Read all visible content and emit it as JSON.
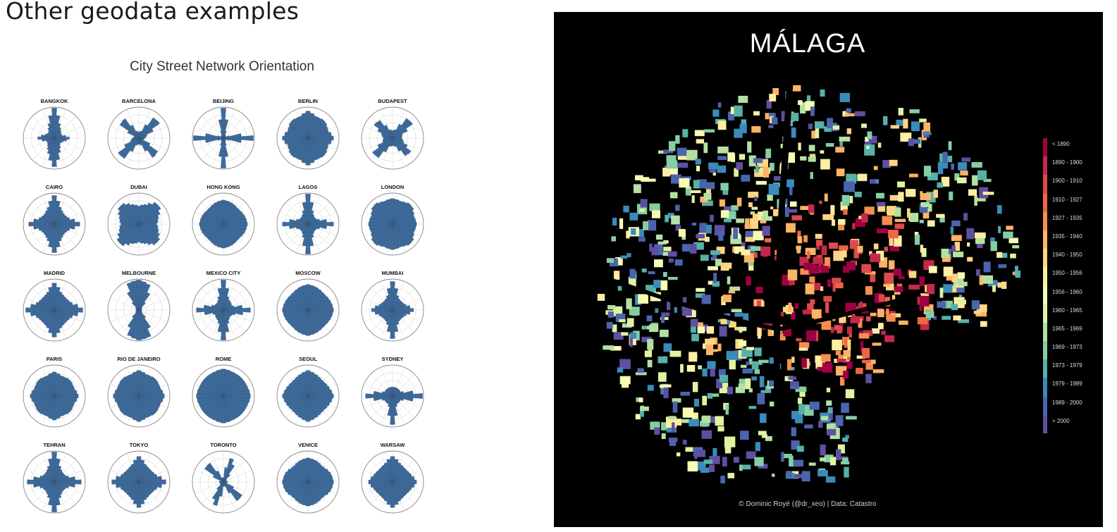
{
  "slide": {
    "title": "Other geodata examples"
  },
  "polar": {
    "title": "City Street Network Orientation",
    "bar_color": "#3d6a99",
    "cities": [
      {
        "name": "BANGKOK",
        "pattern": [
          1.0,
          0.45,
          0.3,
          0.25,
          0.5,
          0.3,
          0.25,
          0.45,
          0.95,
          0.5,
          0.3,
          0.25,
          0.55,
          0.3,
          0.25,
          0.45
        ]
      },
      {
        "name": "BARCELONA",
        "pattern": [
          0.2,
          0.25,
          1.0,
          0.3,
          0.2,
          0.15,
          0.95,
          0.25,
          0.2,
          0.25,
          1.0,
          0.3,
          0.2,
          0.15,
          0.95,
          0.25
        ]
      },
      {
        "name": "BEIJING",
        "pattern": [
          1.0,
          0.15,
          0.1,
          0.1,
          1.0,
          0.1,
          0.1,
          0.15,
          1.0,
          0.15,
          0.1,
          0.1,
          1.0,
          0.1,
          0.1,
          0.15
        ]
      },
      {
        "name": "BERLIN",
        "pattern": [
          0.9,
          0.75,
          0.8,
          0.7,
          0.85,
          0.7,
          0.8,
          0.75,
          0.9,
          0.75,
          0.8,
          0.7,
          0.85,
          0.7,
          0.8,
          0.75
        ]
      },
      {
        "name": "BUDAPEST",
        "pattern": [
          0.25,
          0.3,
          0.95,
          0.35,
          0.3,
          0.4,
          0.85,
          0.3,
          0.25,
          0.3,
          0.95,
          0.35,
          0.3,
          0.4,
          0.85,
          0.3
        ]
      },
      {
        "name": "CAIRO",
        "pattern": [
          0.95,
          0.55,
          0.45,
          0.5,
          0.85,
          0.5,
          0.45,
          0.55,
          0.95,
          0.55,
          0.45,
          0.5,
          0.85,
          0.5,
          0.45,
          0.55
        ]
      },
      {
        "name": "DUBAI",
        "pattern": [
          0.6,
          0.7,
          0.95,
          0.7,
          0.6,
          0.7,
          0.9,
          0.7,
          0.6,
          0.7,
          0.95,
          0.7,
          0.6,
          0.7,
          0.9,
          0.7
        ]
      },
      {
        "name": "HONG KONG",
        "pattern": [
          0.8,
          0.75,
          0.7,
          0.75,
          0.8,
          0.75,
          0.7,
          0.75,
          0.8,
          0.75,
          0.7,
          0.75,
          0.8,
          0.75,
          0.7,
          0.75
        ]
      },
      {
        "name": "LAGOS",
        "pattern": [
          1.0,
          0.4,
          0.3,
          0.35,
          0.85,
          0.35,
          0.3,
          0.4,
          1.0,
          0.4,
          0.3,
          0.35,
          0.85,
          0.35,
          0.3,
          0.4
        ]
      },
      {
        "name": "LONDON",
        "pattern": [
          0.85,
          0.8,
          0.9,
          0.75,
          0.8,
          0.75,
          0.9,
          0.8,
          0.85,
          0.8,
          0.9,
          0.75,
          0.8,
          0.75,
          0.9,
          0.8
        ]
      },
      {
        "name": "MADRID",
        "pattern": [
          0.9,
          0.6,
          0.55,
          0.6,
          0.95,
          0.6,
          0.55,
          0.6,
          0.9,
          0.6,
          0.55,
          0.6,
          0.95,
          0.6,
          0.55,
          0.6
        ]
      },
      {
        "name": "MELBOURNE",
        "pattern": [
          1.0,
          0.9,
          0.15,
          0.1,
          0.1,
          0.1,
          0.15,
          0.95,
          1.0,
          0.9,
          0.15,
          0.1,
          0.1,
          0.1,
          0.15,
          0.95
        ]
      },
      {
        "name": "MEXICO CITY",
        "pattern": [
          1.0,
          0.4,
          0.35,
          0.3,
          0.9,
          0.35,
          0.3,
          0.4,
          1.0,
          0.4,
          0.35,
          0.3,
          0.9,
          0.35,
          0.3,
          0.4
        ]
      },
      {
        "name": "MOSCOW",
        "pattern": [
          0.85,
          0.8,
          0.75,
          0.8,
          0.85,
          0.8,
          0.75,
          0.8,
          0.85,
          0.8,
          0.75,
          0.8,
          0.85,
          0.8,
          0.75,
          0.8
        ]
      },
      {
        "name": "MUMBAI",
        "pattern": [
          0.95,
          0.45,
          0.4,
          0.45,
          0.7,
          0.45,
          0.4,
          0.45,
          0.95,
          0.45,
          0.4,
          0.45,
          0.7,
          0.45,
          0.4,
          0.45
        ]
      },
      {
        "name": "PARIS",
        "pattern": [
          0.8,
          0.7,
          0.75,
          0.7,
          0.8,
          0.7,
          0.75,
          0.7,
          0.8,
          0.7,
          0.75,
          0.7,
          0.8,
          0.7,
          0.75,
          0.7
        ]
      },
      {
        "name": "RIO DE JANEIRO",
        "pattern": [
          0.85,
          0.75,
          0.8,
          0.75,
          0.85,
          0.75,
          0.8,
          0.75,
          0.85,
          0.75,
          0.8,
          0.75,
          0.85,
          0.75,
          0.8,
          0.75
        ]
      },
      {
        "name": "ROME",
        "pattern": [
          0.9,
          0.85,
          0.85,
          0.85,
          0.9,
          0.85,
          0.85,
          0.85,
          0.9,
          0.85,
          0.85,
          0.85,
          0.9,
          0.85,
          0.85,
          0.85
        ]
      },
      {
        "name": "SEOUL",
        "pattern": [
          0.85,
          0.75,
          0.7,
          0.75,
          0.85,
          0.75,
          0.7,
          0.75,
          0.85,
          0.75,
          0.7,
          0.75,
          0.85,
          0.75,
          0.7,
          0.75
        ]
      },
      {
        "name": "SYDNEY",
        "pattern": [
          0.3,
          0.3,
          0.3,
          0.3,
          1.0,
          0.3,
          0.3,
          0.3,
          0.95,
          0.3,
          0.3,
          0.3,
          0.9,
          0.3,
          0.3,
          0.3
        ]
      },
      {
        "name": "TEHRAN",
        "pattern": [
          1.0,
          0.5,
          0.4,
          0.45,
          0.9,
          0.45,
          0.4,
          0.5,
          1.0,
          0.5,
          0.4,
          0.45,
          0.9,
          0.45,
          0.4,
          0.5
        ]
      },
      {
        "name": "TOKYO",
        "pattern": [
          0.85,
          0.6,
          0.55,
          0.6,
          0.9,
          0.6,
          0.55,
          0.6,
          0.85,
          0.6,
          0.55,
          0.6,
          0.9,
          0.6,
          0.55,
          0.6
        ]
      },
      {
        "name": "TORONTO",
        "pattern": [
          0.15,
          0.9,
          0.15,
          0.1,
          0.15,
          0.1,
          0.95,
          0.15,
          0.15,
          0.9,
          0.15,
          0.1,
          0.15,
          0.1,
          0.95,
          0.15
        ]
      },
      {
        "name": "VENICE",
        "pattern": [
          0.8,
          0.75,
          0.7,
          0.8,
          0.85,
          0.8,
          0.7,
          0.75,
          0.8,
          0.75,
          0.7,
          0.8,
          0.85,
          0.8,
          0.7,
          0.75
        ]
      },
      {
        "name": "WARSAW",
        "pattern": [
          0.85,
          0.65,
          0.6,
          0.65,
          0.8,
          0.65,
          0.6,
          0.65,
          0.85,
          0.65,
          0.6,
          0.65,
          0.8,
          0.65,
          0.6,
          0.65
        ]
      }
    ]
  },
  "map": {
    "title": "MÁLAGA",
    "credit": "© Dominic Royé (@dr_xeo) | Data: Catastro",
    "legend": [
      {
        "label": "< 1890",
        "color": "#9e0142"
      },
      {
        "label": "1890 - 1900",
        "color": "#c2294a"
      },
      {
        "label": "1900 - 1910",
        "color": "#dd4a4c"
      },
      {
        "label": "1910 - 1927",
        "color": "#ef6645"
      },
      {
        "label": "1927 - 1935",
        "color": "#f88d51"
      },
      {
        "label": "1935 - 1940",
        "color": "#fdb365"
      },
      {
        "label": "1940 - 1950",
        "color": "#fed683"
      },
      {
        "label": "1950 - 1956",
        "color": "#feeea2"
      },
      {
        "label": "1956 - 1960",
        "color": "#f7fcb3"
      },
      {
        "label": "1960 - 1965",
        "color": "#e0f3a1"
      },
      {
        "label": "1965 - 1969",
        "color": "#b4e1a2"
      },
      {
        "label": "1969 - 1973",
        "color": "#84cea4"
      },
      {
        "label": "1973 - 1979",
        "color": "#56b1a9"
      },
      {
        "label": "1979 - 1989",
        "color": "#3a8bb9"
      },
      {
        "label": "1989 - 2000",
        "color": "#4a65ae"
      },
      {
        "label": "> 2000",
        "color": "#5e4fa2"
      }
    ]
  }
}
